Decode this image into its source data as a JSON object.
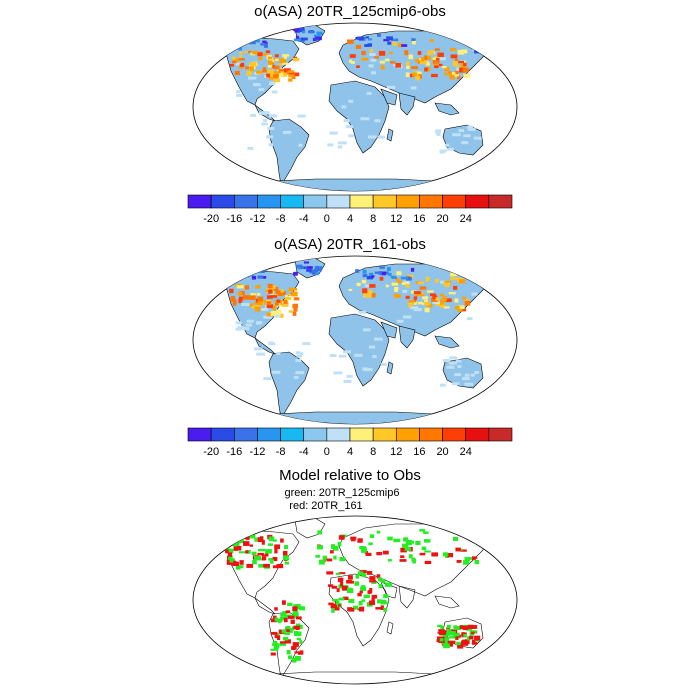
{
  "panels": [
    {
      "title": "o(ASA) 20TR_125cmip6-obs",
      "variant": "a",
      "colorbar": {
        "colors": [
          "#4a1cf0",
          "#2a4be8",
          "#3a72ea",
          "#2895f0",
          "#18b8f2",
          "#8cc8ee",
          "#c0e1f5",
          "#fff07a",
          "#ffc728",
          "#ffa000",
          "#ff7600",
          "#ff3e06",
          "#e61010",
          "#c82a2a"
        ],
        "labels": [
          "-20",
          "-16",
          "-12",
          "-8",
          "-4",
          "0",
          "4",
          "8",
          "12",
          "16",
          "20",
          "24"
        ]
      }
    },
    {
      "title": "o(ASA) 20TR_161-obs",
      "variant": "b",
      "colorbar": {
        "colors": [
          "#4a1cf0",
          "#2a4be8",
          "#3a72ea",
          "#2895f0",
          "#18b8f2",
          "#8cc8ee",
          "#c0e1f5",
          "#fff07a",
          "#ffc728",
          "#ffa000",
          "#ff7600",
          "#ff3e06",
          "#e61010",
          "#c82a2a"
        ],
        "labels": [
          "-20",
          "-16",
          "-12",
          "-8",
          "-4",
          "0",
          "4",
          "8",
          "12",
          "16",
          "20",
          "24"
        ]
      }
    }
  ],
  "comparison": {
    "title": "Model relative to Obs",
    "green_label": "green: 20TR_125cmip6",
    "red_label": "red: 20TR_161",
    "green_color": "#22ee22",
    "red_color": "#ee1111"
  },
  "colors": {
    "land_base": "#8fc3ea",
    "land_light": "#c0e1f5",
    "coast": "#000000"
  }
}
